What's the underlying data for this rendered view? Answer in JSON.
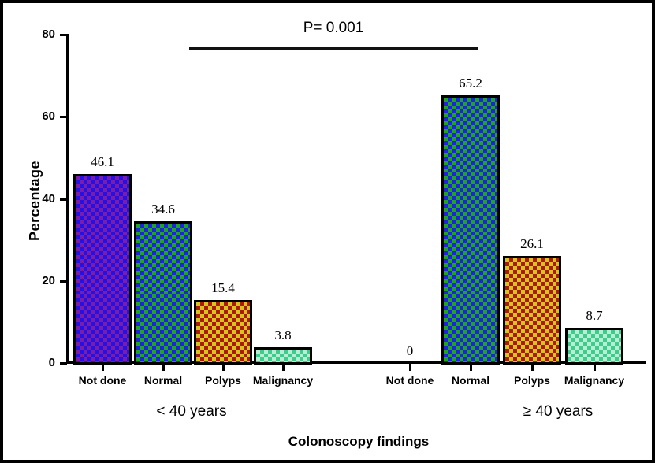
{
  "frame": {
    "background": "#ffffff",
    "border_color": "#000000"
  },
  "chart_data": {
    "type": "bar",
    "title": "",
    "xlabel": "Colonoscopy findings",
    "ylabel": "Percentage",
    "ylim": [
      0,
      80
    ],
    "yticks": [
      "0",
      "20",
      "40",
      "60",
      "80"
    ],
    "grid": false,
    "legend": "none",
    "annotation": {
      "text": "P= 0.001",
      "line_color": "#111111"
    },
    "categories": [
      "Not done",
      "Normal",
      "Polyps",
      "Malignancy"
    ],
    "groups": [
      {
        "label": "< 40 years",
        "values": [
          46.1,
          34.6,
          15.4,
          3.8
        ],
        "value_labels": [
          "46.1",
          "34.6",
          "15.4",
          "3.8"
        ]
      },
      {
        "label": "≥ 40 years",
        "values": [
          0,
          65.2,
          26.1,
          8.7
        ],
        "value_labels": [
          "0",
          "65.2",
          "26.1",
          "8.7"
        ]
      }
    ],
    "bar_styles": [
      {
        "category": "Not done",
        "base": "#2212e6",
        "check": "#7d1ca6"
      },
      {
        "category": "Normal",
        "base": "#1e24dd",
        "check": "#1fa522"
      },
      {
        "category": "Polyps",
        "base": "#ae1a00",
        "check": "#d6c41f"
      },
      {
        "category": "Malignancy",
        "base": "#3ecc8a",
        "check": "#b9eed6"
      }
    ]
  }
}
